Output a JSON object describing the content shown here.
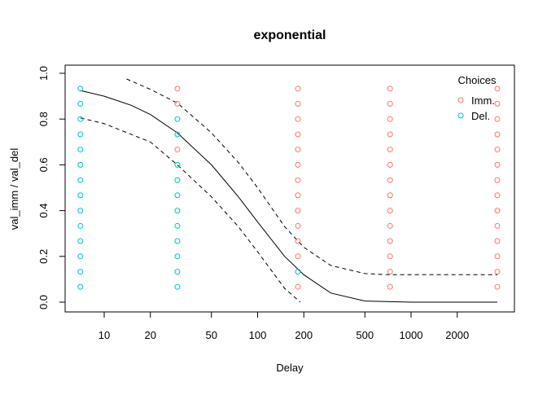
{
  "chart_data": {
    "type": "scatter",
    "title": "exponential",
    "xlabel": "Delay",
    "ylabel": "val_imm / val_del",
    "x_scale": "log",
    "xlim": [
      5.8,
      4400
    ],
    "ylim": [
      -0.04,
      1.04
    ],
    "x_ticks": [
      10,
      20,
      50,
      100,
      200,
      500,
      1000,
      2000
    ],
    "y_ticks": [
      "0.0",
      "0.2",
      "0.4",
      "0.6",
      "0.8",
      "1.0"
    ],
    "grid": false,
    "legend": {
      "title": "Choices",
      "placement": "top-right",
      "entries": [
        {
          "label": "Imm.",
          "color": "#F8766D"
        },
        {
          "label": "Del.",
          "color": "#00BFC4"
        }
      ]
    },
    "delays": [
      7,
      30,
      183,
      730,
      3650
    ],
    "levels": [
      0.067,
      0.133,
      0.2,
      0.267,
      0.333,
      0.4,
      0.467,
      0.533,
      0.6,
      0.667,
      0.733,
      0.8,
      0.867,
      0.933
    ],
    "choices": {
      "7": [
        "Del.",
        "Del.",
        "Del.",
        "Del.",
        "Del.",
        "Del.",
        "Del.",
        "Del.",
        "Del.",
        "Del.",
        "Del.",
        "Del.",
        "Del.",
        "Del."
      ],
      "30": [
        "Del.",
        "Del.",
        "Del.",
        "Del.",
        "Del.",
        "Del.",
        "Del.",
        "Del.",
        "Del.",
        "Imm.",
        "Del.",
        "Del.",
        "Imm.",
        "Imm."
      ],
      "183": [
        "Imm.",
        "Del.",
        "Imm.",
        "Imm.",
        "Imm.",
        "Imm.",
        "Imm.",
        "Imm.",
        "Imm.",
        "Imm.",
        "Imm.",
        "Imm.",
        "Imm.",
        "Imm."
      ],
      "730": [
        "Imm.",
        "Imm.",
        "Imm.",
        "Imm.",
        "Imm.",
        "Imm.",
        "Imm.",
        "Imm.",
        "Imm.",
        "Imm.",
        "Imm.",
        "Imm.",
        "Imm.",
        "Imm."
      ],
      "3650": [
        "Imm.",
        "Imm.",
        "Imm.",
        "Imm.",
        "Imm.",
        "Imm.",
        "Imm.",
        "Imm.",
        "Imm.",
        "Imm.",
        "Imm.",
        "Imm.",
        "Imm.",
        "Imm."
      ]
    },
    "lines": [
      {
        "style": "solid",
        "points": [
          [
            7,
            0.925
          ],
          [
            10,
            0.9
          ],
          [
            15,
            0.86
          ],
          [
            20,
            0.82
          ],
          [
            30,
            0.74
          ],
          [
            50,
            0.6
          ],
          [
            75,
            0.46
          ],
          [
            100,
            0.35
          ],
          [
            150,
            0.2
          ],
          [
            200,
            0.12
          ],
          [
            300,
            0.04
          ],
          [
            500,
            0.005
          ],
          [
            1000,
            0
          ],
          [
            3650,
            0
          ]
        ]
      },
      {
        "style": "dashed",
        "points": [
          [
            14,
            0.975
          ],
          [
            20,
            0.93
          ],
          [
            30,
            0.87
          ],
          [
            50,
            0.74
          ],
          [
            75,
            0.61
          ],
          [
            100,
            0.5
          ],
          [
            150,
            0.33
          ],
          [
            200,
            0.24
          ],
          [
            300,
            0.16
          ],
          [
            500,
            0.125
          ],
          [
            700,
            0.12
          ],
          [
            3650,
            0.12
          ]
        ]
      },
      {
        "style": "dashed",
        "points": [
          [
            7,
            0.805
          ],
          [
            10,
            0.78
          ],
          [
            20,
            0.7
          ],
          [
            30,
            0.6
          ],
          [
            50,
            0.46
          ],
          [
            75,
            0.33
          ],
          [
            100,
            0.22
          ],
          [
            150,
            0.06
          ],
          [
            190,
            0.0
          ]
        ]
      }
    ]
  }
}
